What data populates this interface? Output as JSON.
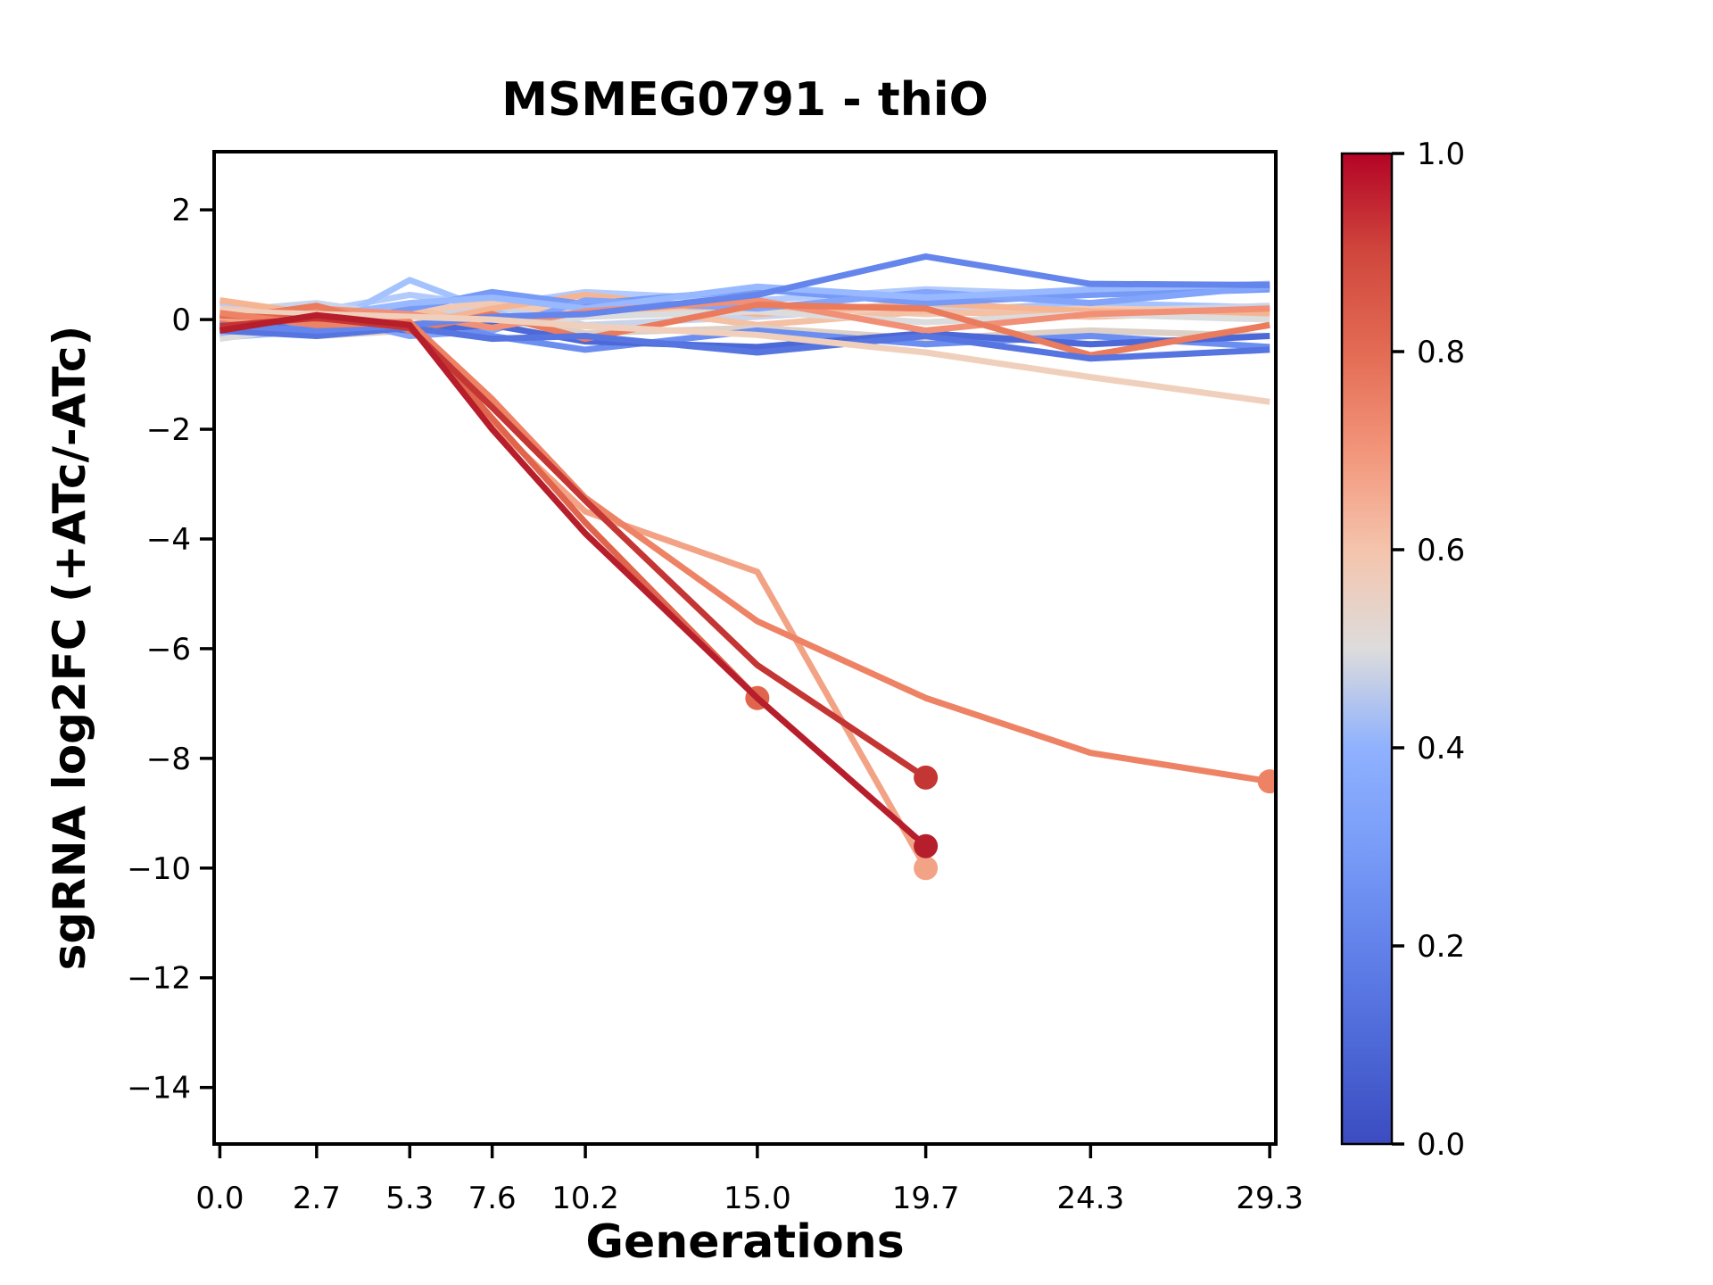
{
  "figure": {
    "title": "MSMEG0791 - thiO"
  },
  "chart_data": {
    "type": "line",
    "title": "MSMEG0791 - thiO",
    "xlabel": "Generations",
    "ylabel": "sgRNA log2FC (+ATc/-ATc)",
    "grid": false,
    "legend": "none (colorbar encodes line value)",
    "x": [
      0.0,
      2.7,
      5.3,
      7.6,
      10.2,
      15.0,
      19.7,
      24.3,
      29.3
    ],
    "xtick_labels": [
      "0.0",
      "2.7",
      "5.3",
      "7.6",
      "10.2",
      "15.0",
      "19.7",
      "24.3",
      "29.3"
    ],
    "ytick_values": [
      2,
      0,
      -2,
      -4,
      -6,
      -8,
      -10,
      -12,
      -14
    ],
    "ytick_labels": [
      "2",
      "0",
      "−2",
      "−4",
      "−6",
      "−8",
      "−10",
      "−12",
      "−14"
    ],
    "xlim": [
      -0.16,
      29.47
    ],
    "ylim": [
      -15.03,
      3.06
    ],
    "colorbar": {
      "colormap": "coolwarm",
      "min": 0.0,
      "max": 1.0,
      "tick_values": [
        1.0,
        0.8,
        0.6,
        0.4,
        0.2,
        0.0
      ],
      "tick_labels": [
        "1.0",
        "0.8",
        "0.6",
        "0.4",
        "0.2",
        "0.0"
      ],
      "stops": [
        {
          "at": 0.0,
          "color": "#3b4cc0"
        },
        {
          "at": 0.1,
          "color": "#4d68d7"
        },
        {
          "at": 0.2,
          "color": "#6282ea"
        },
        {
          "at": 0.3,
          "color": "#799cf8"
        },
        {
          "at": 0.4,
          "color": "#8fb1fe"
        },
        {
          "at": 0.5,
          "color": "#dddcdc"
        },
        {
          "at": 0.6,
          "color": "#f5c4ac"
        },
        {
          "at": 0.7,
          "color": "#f2957a"
        },
        {
          "at": 0.8,
          "color": "#e36b54"
        },
        {
          "at": 0.9,
          "color": "#d0473d"
        },
        {
          "at": 1.0,
          "color": "#b40426"
        }
      ]
    },
    "series": [
      {
        "value": 0.46,
        "color": "#b2cbfc",
        "end_marker": false,
        "y": [
          0.3,
          0.15,
          0.45,
          0.25,
          0.5,
          0.35,
          0.55,
          0.45,
          0.6
        ]
      },
      {
        "value": 0.44,
        "color": "#a3c2fe",
        "end_marker": false,
        "y": [
          -0.33,
          -0.2,
          0.72,
          0.15,
          0.32,
          0.25,
          0.15,
          0.3,
          0.22
        ]
      },
      {
        "value": 0.48,
        "color": "#c9d4ea",
        "end_marker": false,
        "y": [
          0.15,
          0.3,
          0.05,
          0.25,
          -0.1,
          0.05,
          0.25,
          0.15,
          0.25
        ]
      },
      {
        "value": 0.58,
        "color": "#f2cab4",
        "end_marker": false,
        "y": [
          0.2,
          0.05,
          0.15,
          0.3,
          0.1,
          0.25,
          0.1,
          0.2,
          0.15
        ]
      },
      {
        "value": 0.61,
        "color": "#f4c0a6",
        "end_marker": false,
        "y": [
          -0.2,
          0.1,
          0.2,
          -0.1,
          0.3,
          -0.1,
          0.15,
          0.05,
          0.15
        ]
      },
      {
        "value": 0.64,
        "color": "#f5b593",
        "end_marker": false,
        "y": [
          0.35,
          0.1,
          -0.1,
          0.2,
          0.45,
          0.1,
          0.3,
          0.15,
          0.1
        ]
      },
      {
        "value": 0.5,
        "color": "#dcdcdc",
        "end_marker": false,
        "y": [
          -0.35,
          -0.1,
          0.1,
          -0.15,
          0.05,
          0.15,
          -0.05,
          0.1,
          0.0
        ]
      },
      {
        "value": 0.52,
        "color": "#ddd0c6",
        "end_marker": false,
        "y": [
          -0.1,
          -0.3,
          -0.2,
          0.1,
          -0.25,
          -0.15,
          -0.35,
          -0.2,
          -0.3
        ]
      },
      {
        "value": 0.3,
        "color": "#779af7",
        "end_marker": false,
        "y": [
          0.1,
          -0.15,
          0.2,
          0.5,
          0.28,
          0.55,
          0.3,
          0.45,
          0.55
        ]
      },
      {
        "value": 0.35,
        "color": "#82a5fb",
        "end_marker": false,
        "y": [
          0.05,
          0.1,
          -0.3,
          -0.2,
          0.35,
          0.2,
          0.5,
          0.3,
          0.6
        ]
      },
      {
        "value": 0.42,
        "color": "#98b9ff",
        "end_marker": false,
        "y": [
          -0.25,
          0.05,
          0.3,
          0.4,
          0.2,
          0.6,
          0.4,
          0.55,
          0.65
        ]
      },
      {
        "value": 0.28,
        "color": "#6c8ef1",
        "end_marker": false,
        "y": [
          0.0,
          -0.25,
          0.1,
          -0.3,
          -0.55,
          -0.2,
          -0.45,
          -0.3,
          -0.5
        ]
      },
      {
        "value": 0.1,
        "color": "#4d68d7",
        "end_marker": false,
        "y": [
          -0.15,
          0.0,
          -0.2,
          -0.1,
          -0.4,
          -0.5,
          -0.25,
          -0.45,
          -0.3
        ]
      },
      {
        "value": 0.75,
        "color": "#f19076",
        "end_marker": false,
        "y": [
          -0.05,
          0.2,
          0.1,
          -0.15,
          0.15,
          0.35,
          -0.2,
          0.1,
          0.2
        ]
      },
      {
        "value": 0.8,
        "color": "#ea7b5d",
        "end_marker": false,
        "y": [
          0.0,
          0.25,
          -0.2,
          0.1,
          -0.35,
          0.27,
          0.2,
          -0.65,
          -0.1
        ]
      },
      {
        "value": 0.15,
        "color": "#5775e1",
        "end_marker": false,
        "y": [
          -0.2,
          -0.3,
          -0.15,
          -0.35,
          -0.3,
          -0.6,
          -0.3,
          -0.71,
          -0.55
        ]
      },
      {
        "value": 0.22,
        "color": "#6485ec",
        "end_marker": false,
        "y": [
          -0.1,
          -0.2,
          -0.1,
          0.05,
          0.1,
          0.45,
          1.15,
          0.65,
          0.63
        ]
      },
      {
        "value": 0.56,
        "color": "#f0d0bc",
        "end_marker": false,
        "y": [
          0.15,
          0.1,
          0.05,
          0.0,
          -0.12,
          -0.28,
          -0.6,
          -1.05,
          -1.5
        ]
      },
      {
        "value": 0.68,
        "color": "#f3a385",
        "end_marker": true,
        "y": [
          0.04,
          -0.06,
          -0.04,
          -1.9,
          -3.5,
          -4.6,
          -10.0,
          null,
          null
        ]
      },
      {
        "value": 0.86,
        "color": "#e0654c",
        "end_marker": true,
        "y": [
          0.08,
          0.0,
          -0.08,
          -1.8,
          -3.7,
          -6.9,
          null,
          null,
          null
        ]
      },
      {
        "value": 0.79,
        "color": "#ee8265",
        "end_marker": true,
        "y": [
          0.12,
          -0.1,
          -0.05,
          -1.45,
          -3.25,
          -5.5,
          -6.9,
          -7.9,
          -8.42
        ]
      },
      {
        "value": 0.95,
        "color": "#c43634",
        "end_marker": true,
        "y": [
          -0.12,
          0.03,
          -0.15,
          -1.6,
          -3.3,
          -6.3,
          -8.35,
          null,
          null
        ]
      },
      {
        "value": 1.0,
        "color": "#b71e2b",
        "end_marker": true,
        "y": [
          -0.2,
          0.08,
          -0.1,
          -2.0,
          -3.9,
          -6.9,
          -9.6,
          null,
          null
        ]
      }
    ]
  }
}
